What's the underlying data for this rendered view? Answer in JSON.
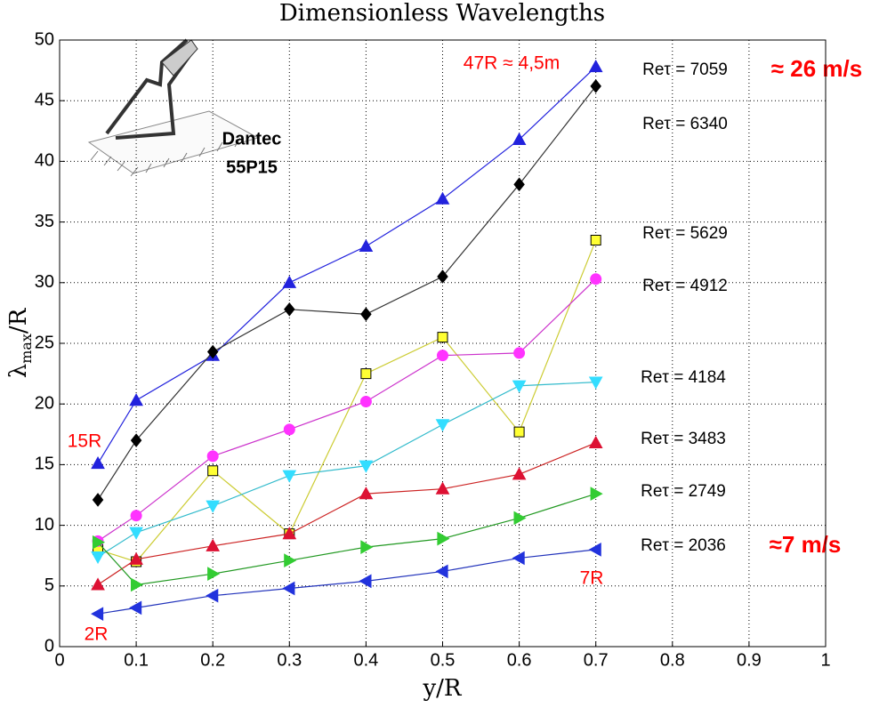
{
  "chart_data": {
    "type": "line",
    "title": "Dimensionless Wavelengths",
    "x_label": "y/R",
    "y_label": {
      "symbol": "λ",
      "subscript": "max",
      "rest": "/R"
    },
    "x": [
      0.05,
      0.1,
      0.2,
      0.3,
      0.4,
      0.5,
      0.6,
      0.7
    ],
    "series": [
      {
        "name": "Reτ = 7059",
        "color": "#2222dd",
        "marker": "triangle-up",
        "marker_color": "#2222dd",
        "values": [
          15.1,
          20.3,
          24.0,
          30.0,
          33.0,
          36.9,
          41.8,
          47.8
        ]
      },
      {
        "name": "Reτ = 6340",
        "color": "#333333",
        "marker": "diamond",
        "marker_color": "#000000",
        "values": [
          12.1,
          17.0,
          24.3,
          27.8,
          27.4,
          30.5,
          38.1,
          46.2
        ]
      },
      {
        "name": "Reτ = 5629",
        "color": "#cccc33",
        "marker": "square",
        "marker_color": "#ffff33",
        "values": [
          8.0,
          7.0,
          14.5,
          9.3,
          22.5,
          25.5,
          17.7,
          33.5
        ]
      },
      {
        "name": "Reτ = 4912",
        "color": "#cc33cc",
        "marker": "circle",
        "marker_color": "#ff33ff",
        "values": [
          8.7,
          10.8,
          15.7,
          17.9,
          20.2,
          24.0,
          24.2,
          30.3
        ]
      },
      {
        "name": "Reτ = 4184",
        "color": "#33bbcc",
        "marker": "triangle-down",
        "marker_color": "#33ddff",
        "values": [
          7.4,
          9.4,
          11.6,
          14.1,
          14.9,
          18.3,
          21.5,
          21.8
        ]
      },
      {
        "name": "Reτ = 3483",
        "color": "#cc2222",
        "marker": "triangle-up",
        "marker_color": "#dd1133",
        "values": [
          5.1,
          7.2,
          8.3,
          9.3,
          12.6,
          13.0,
          14.2,
          16.8
        ]
      },
      {
        "name": "Reτ = 2749",
        "color": "#229922",
        "marker": "triangle-right",
        "marker_color": "#33cc33",
        "values": [
          8.6,
          5.1,
          6.0,
          7.1,
          8.2,
          8.9,
          10.6,
          12.6
        ]
      },
      {
        "name": "Reτ = 2036",
        "color": "#2233bb",
        "marker": "triangle-left",
        "marker_color": "#2233dd",
        "values": [
          2.7,
          3.2,
          4.2,
          4.8,
          5.4,
          6.2,
          7.3,
          8.0
        ]
      }
    ],
    "xlim": [
      0,
      1
    ],
    "xticks": [
      0,
      0.1,
      0.2,
      0.3,
      0.4,
      0.5,
      0.6,
      0.7,
      0.8,
      0.9,
      1
    ],
    "ylim": [
      0,
      50
    ],
    "yticks": [
      0,
      5,
      10,
      15,
      20,
      25,
      30,
      35,
      40,
      45,
      50
    ],
    "grid": true,
    "annotations": {
      "top_length": "47R ≈ 4,5m",
      "top_speed": "≈ 26 m/s",
      "bottom_speed": "≈7 m/s",
      "left_top": "15R",
      "left_bottom": "2R",
      "right_bottom": "7R",
      "probe_name": "Dantec",
      "probe_model": "55P15"
    }
  }
}
